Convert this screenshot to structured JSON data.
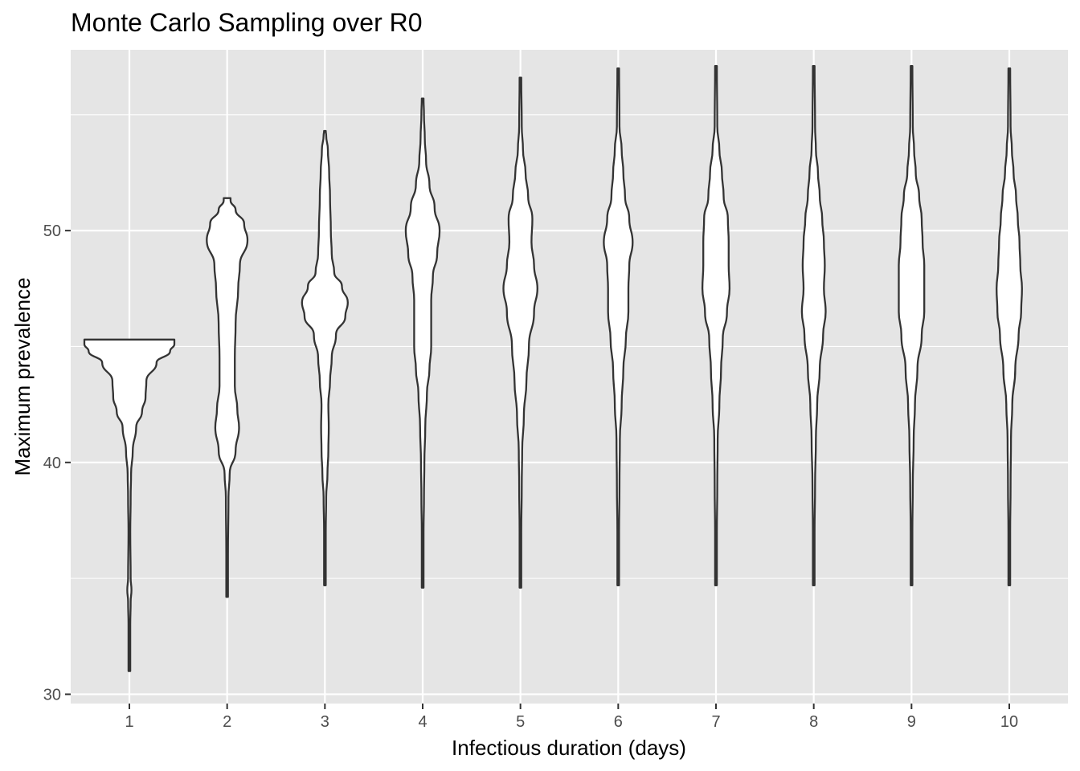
{
  "chart_data": {
    "type": "violin",
    "title": "Monte Carlo Sampling over R0",
    "xlabel": "Infectious duration (days)",
    "ylabel": "Maximum prevalence",
    "categories": [
      "1",
      "2",
      "3",
      "4",
      "5",
      "6",
      "7",
      "8",
      "9",
      "10"
    ],
    "y_ticks": [
      "30",
      "40",
      "50"
    ],
    "ylim": [
      29.6,
      57.8
    ],
    "grid": true,
    "background": "#e5e5e5",
    "violin_fill": "#ffffff",
    "violin_stroke": "#333333",
    "violins": [
      {
        "category": "1",
        "min": 31.0,
        "max": 45.3,
        "profile": [
          [
            31.0,
            0.01
          ],
          [
            33.0,
            0.01
          ],
          [
            34.0,
            0.015
          ],
          [
            34.5,
            0.025
          ],
          [
            35.0,
            0.015
          ],
          [
            37.0,
            0.01
          ],
          [
            38.5,
            0.015
          ],
          [
            39.5,
            0.02
          ],
          [
            40.5,
            0.04
          ],
          [
            41.5,
            0.08
          ],
          [
            42.2,
            0.15
          ],
          [
            42.8,
            0.19
          ],
          [
            43.5,
            0.2
          ],
          [
            44.3,
            0.32
          ],
          [
            44.8,
            0.48
          ],
          [
            45.1,
            0.53
          ],
          [
            45.3,
            0.53
          ]
        ]
      },
      {
        "category": "2",
        "min": 34.2,
        "max": 51.4,
        "profile": [
          [
            34.2,
            0.01
          ],
          [
            36.0,
            0.01
          ],
          [
            38.5,
            0.015
          ],
          [
            39.5,
            0.03
          ],
          [
            40.5,
            0.1
          ],
          [
            41.5,
            0.14
          ],
          [
            42.3,
            0.12
          ],
          [
            43.3,
            0.09
          ],
          [
            44.5,
            0.09
          ],
          [
            46.0,
            0.1
          ],
          [
            47.5,
            0.13
          ],
          [
            48.5,
            0.15
          ],
          [
            49.6,
            0.24
          ],
          [
            50.3,
            0.2
          ],
          [
            50.9,
            0.1
          ],
          [
            51.3,
            0.04
          ],
          [
            51.4,
            0.04
          ]
        ]
      },
      {
        "category": "3",
        "min": 34.7,
        "max": 54.3,
        "profile": [
          [
            34.7,
            0.01
          ],
          [
            37.0,
            0.01
          ],
          [
            38.5,
            0.015
          ],
          [
            39.5,
            0.03
          ],
          [
            40.5,
            0.04
          ],
          [
            41.5,
            0.045
          ],
          [
            42.5,
            0.04
          ],
          [
            43.5,
            0.06
          ],
          [
            44.5,
            0.08
          ],
          [
            45.5,
            0.13
          ],
          [
            46.3,
            0.24
          ],
          [
            46.9,
            0.27
          ],
          [
            47.6,
            0.2
          ],
          [
            48.2,
            0.11
          ],
          [
            49.0,
            0.08
          ],
          [
            50.0,
            0.07
          ],
          [
            51.5,
            0.06
          ],
          [
            52.5,
            0.05
          ],
          [
            53.5,
            0.035
          ],
          [
            54.1,
            0.015
          ],
          [
            54.3,
            0.01
          ]
        ]
      },
      {
        "category": "4",
        "min": 34.6,
        "max": 55.7,
        "profile": [
          [
            34.6,
            0.01
          ],
          [
            37.0,
            0.01
          ],
          [
            38.5,
            0.015
          ],
          [
            40.0,
            0.02
          ],
          [
            41.5,
            0.03
          ],
          [
            43.0,
            0.05
          ],
          [
            44.0,
            0.08
          ],
          [
            45.0,
            0.1
          ],
          [
            46.0,
            0.1
          ],
          [
            47.0,
            0.1
          ],
          [
            48.0,
            0.12
          ],
          [
            49.0,
            0.17
          ],
          [
            50.0,
            0.2
          ],
          [
            51.0,
            0.14
          ],
          [
            52.0,
            0.08
          ],
          [
            53.0,
            0.04
          ],
          [
            54.0,
            0.025
          ],
          [
            55.0,
            0.015
          ],
          [
            55.7,
            0.01
          ]
        ]
      },
      {
        "category": "5",
        "min": 34.6,
        "max": 56.6,
        "profile": [
          [
            34.6,
            0.01
          ],
          [
            37.0,
            0.01
          ],
          [
            39.0,
            0.015
          ],
          [
            40.5,
            0.02
          ],
          [
            42.0,
            0.04
          ],
          [
            43.5,
            0.07
          ],
          [
            45.0,
            0.1
          ],
          [
            46.5,
            0.16
          ],
          [
            47.5,
            0.2
          ],
          [
            48.5,
            0.16
          ],
          [
            49.5,
            0.13
          ],
          [
            50.5,
            0.14
          ],
          [
            51.5,
            0.09
          ],
          [
            52.5,
            0.06
          ],
          [
            53.5,
            0.03
          ],
          [
            54.5,
            0.015
          ],
          [
            56.6,
            0.01
          ]
        ]
      },
      {
        "category": "6",
        "min": 34.7,
        "max": 57.0,
        "profile": [
          [
            34.7,
            0.01
          ],
          [
            37.0,
            0.01
          ],
          [
            39.0,
            0.015
          ],
          [
            41.0,
            0.02
          ],
          [
            42.5,
            0.04
          ],
          [
            44.0,
            0.06
          ],
          [
            45.3,
            0.09
          ],
          [
            46.5,
            0.12
          ],
          [
            47.5,
            0.12
          ],
          [
            48.5,
            0.13
          ],
          [
            49.5,
            0.17
          ],
          [
            50.5,
            0.13
          ],
          [
            51.5,
            0.08
          ],
          [
            52.5,
            0.06
          ],
          [
            53.5,
            0.04
          ],
          [
            54.5,
            0.015
          ],
          [
            57.0,
            0.01
          ]
        ]
      },
      {
        "category": "7",
        "min": 34.7,
        "max": 57.1,
        "profile": [
          [
            34.7,
            0.01
          ],
          [
            37.0,
            0.01
          ],
          [
            39.0,
            0.015
          ],
          [
            41.0,
            0.02
          ],
          [
            42.5,
            0.04
          ],
          [
            44.0,
            0.06
          ],
          [
            45.3,
            0.08
          ],
          [
            46.5,
            0.13
          ],
          [
            47.5,
            0.16
          ],
          [
            48.5,
            0.15
          ],
          [
            49.5,
            0.15
          ],
          [
            50.5,
            0.14
          ],
          [
            51.5,
            0.09
          ],
          [
            52.5,
            0.07
          ],
          [
            53.5,
            0.04
          ],
          [
            54.5,
            0.015
          ],
          [
            57.1,
            0.01
          ]
        ]
      },
      {
        "category": "8",
        "min": 34.7,
        "max": 57.1,
        "profile": [
          [
            34.7,
            0.01
          ],
          [
            37.0,
            0.01
          ],
          [
            39.0,
            0.015
          ],
          [
            41.0,
            0.025
          ],
          [
            42.5,
            0.04
          ],
          [
            44.0,
            0.07
          ],
          [
            45.5,
            0.11
          ],
          [
            46.5,
            0.14
          ],
          [
            47.5,
            0.12
          ],
          [
            48.5,
            0.13
          ],
          [
            49.5,
            0.12
          ],
          [
            50.5,
            0.1
          ],
          [
            51.5,
            0.07
          ],
          [
            52.5,
            0.05
          ],
          [
            53.5,
            0.025
          ],
          [
            54.5,
            0.015
          ],
          [
            57.1,
            0.01
          ]
        ]
      },
      {
        "category": "9",
        "min": 34.7,
        "max": 57.1,
        "profile": [
          [
            34.7,
            0.01
          ],
          [
            37.0,
            0.01
          ],
          [
            39.0,
            0.015
          ],
          [
            41.0,
            0.025
          ],
          [
            42.5,
            0.04
          ],
          [
            44.0,
            0.07
          ],
          [
            45.5,
            0.12
          ],
          [
            46.5,
            0.15
          ],
          [
            47.5,
            0.15
          ],
          [
            48.5,
            0.15
          ],
          [
            49.5,
            0.13
          ],
          [
            50.5,
            0.12
          ],
          [
            51.5,
            0.09
          ],
          [
            52.5,
            0.05
          ],
          [
            53.5,
            0.03
          ],
          [
            54.5,
            0.015
          ],
          [
            57.1,
            0.01
          ]
        ]
      },
      {
        "category": "10",
        "min": 34.7,
        "max": 57.0,
        "profile": [
          [
            34.7,
            0.01
          ],
          [
            37.0,
            0.01
          ],
          [
            39.0,
            0.015
          ],
          [
            41.0,
            0.02
          ],
          [
            42.5,
            0.035
          ],
          [
            44.0,
            0.07
          ],
          [
            45.5,
            0.11
          ],
          [
            46.5,
            0.14
          ],
          [
            47.5,
            0.15
          ],
          [
            48.5,
            0.13
          ],
          [
            49.5,
            0.12
          ],
          [
            50.5,
            0.1
          ],
          [
            51.5,
            0.08
          ],
          [
            52.5,
            0.05
          ],
          [
            53.5,
            0.03
          ],
          [
            54.5,
            0.015
          ],
          [
            57.0,
            0.01
          ]
        ]
      }
    ]
  }
}
